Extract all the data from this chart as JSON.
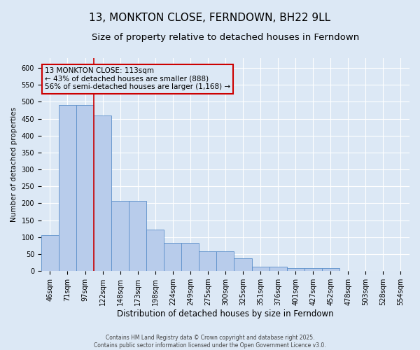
{
  "title": "13, MONKTON CLOSE, FERNDOWN, BH22 9LL",
  "subtitle": "Size of property relative to detached houses in Ferndown",
  "xlabel": "Distribution of detached houses by size in Ferndown",
  "ylabel": "Number of detached properties",
  "footer_line1": "Contains HM Land Registry data © Crown copyright and database right 2025.",
  "footer_line2": "Contains public sector information licensed under the Open Government Licence v3.0.",
  "categories": [
    "46sqm",
    "71sqm",
    "97sqm",
    "122sqm",
    "148sqm",
    "173sqm",
    "198sqm",
    "224sqm",
    "249sqm",
    "275sqm",
    "300sqm",
    "325sqm",
    "351sqm",
    "376sqm",
    "401sqm",
    "427sqm",
    "452sqm",
    "478sqm",
    "503sqm",
    "528sqm",
    "554sqm"
  ],
  "values": [
    105,
    490,
    490,
    460,
    207,
    207,
    122,
    83,
    83,
    58,
    58,
    38,
    13,
    13,
    9,
    9,
    9,
    0,
    0,
    0,
    0
  ],
  "bar_color": "#b8cceb",
  "bar_edge_color": "#5b8ec9",
  "bg_color": "#dce8f5",
  "grid_color": "#ffffff",
  "annotation_box_color": "#cc0000",
  "annotation_text": "13 MONKTON CLOSE: 113sqm\n← 43% of detached houses are smaller (888)\n56% of semi-detached houses are larger (1,168) →",
  "vline_x_idx": 2.5,
  "vline_color": "#cc0000",
  "ylim": [
    0,
    630
  ],
  "yticks": [
    0,
    50,
    100,
    150,
    200,
    250,
    300,
    350,
    400,
    450,
    500,
    550,
    600
  ],
  "title_fontsize": 11,
  "subtitle_fontsize": 9.5,
  "xlabel_fontsize": 8.5,
  "ylabel_fontsize": 7.5,
  "tick_fontsize": 7,
  "annotation_fontsize": 7.5,
  "footer_fontsize": 5.5
}
